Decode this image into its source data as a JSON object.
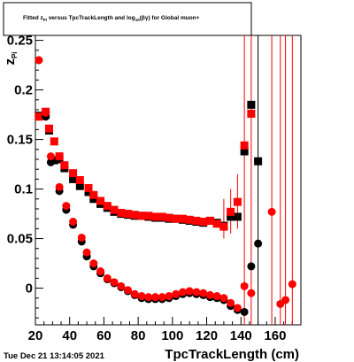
{
  "title": {
    "prefix": "Fitted  z",
    "z_sub": "Pi",
    "middle": "  versus TpcTrackLength and log",
    "log_sub": "10",
    "suffix": "(βγ) for Global muon+"
  },
  "timestamp": "Tue Dec 21 13:14:05 2021",
  "colors": {
    "black_series": "#000000",
    "red_series": "#ff0000",
    "frame": "#000000"
  },
  "chart_data": {
    "type": "scatter",
    "xlabel": "TpcTrackLength (cm)",
    "ylabel": "z_Pi",
    "xlim": [
      20,
      175
    ],
    "ylim": [
      -0.037,
      0.255
    ],
    "xticks": [
      20,
      40,
      60,
      80,
      100,
      120,
      140,
      160
    ],
    "yticks": [
      0,
      0.05,
      0.1,
      0.15,
      0.2,
      0.25
    ],
    "ytick_labels": [
      "0",
      "0.05",
      "0.1",
      "0.15",
      "0.2",
      "0.25"
    ],
    "grid": false,
    "legend": "none",
    "series": [
      {
        "marker": "square",
        "color": "black",
        "points": [
          [
            22,
            0.174
          ],
          [
            26,
            0.175
          ],
          [
            28,
            0.159
          ],
          [
            31,
            0.129
          ],
          [
            34,
            0.13
          ],
          [
            37,
            0.121
          ],
          [
            42,
            0.11
          ],
          [
            46,
            0.103
          ],
          [
            51,
            0.097
          ],
          [
            54,
            0.09
          ],
          [
            58,
            0.085
          ],
          [
            62,
            0.081
          ],
          [
            66,
            0.077
          ],
          [
            70,
            0.075
          ],
          [
            74,
            0.074
          ],
          [
            78,
            0.073
          ],
          [
            82,
            0.073
          ],
          [
            86,
            0.072
          ],
          [
            90,
            0.071
          ],
          [
            94,
            0.071
          ],
          [
            98,
            0.07
          ],
          [
            102,
            0.07
          ],
          [
            106,
            0.069
          ],
          [
            110,
            0.068
          ],
          [
            114,
            0.067
          ],
          [
            118,
            0.066
          ],
          [
            122,
            0.068
          ],
          [
            126,
            0.066
          ],
          [
            130,
            0.063
          ],
          [
            134,
            0.072
          ],
          [
            138,
            0.072
          ],
          [
            142,
            0.138
          ],
          [
            146,
            0.185
          ],
          [
            150,
            0.128
          ]
        ]
      },
      {
        "marker": "square",
        "color": "red",
        "points": [
          [
            22,
            0.173
          ],
          [
            26,
            0.178
          ],
          [
            28,
            0.161
          ],
          [
            31,
            0.148
          ],
          [
            34,
            0.133
          ],
          [
            37,
            0.124
          ],
          [
            42,
            0.116
          ],
          [
            46,
            0.109
          ],
          [
            51,
            0.101
          ],
          [
            54,
            0.094
          ],
          [
            58,
            0.088
          ],
          [
            62,
            0.083
          ],
          [
            66,
            0.079
          ],
          [
            70,
            0.076
          ],
          [
            74,
            0.075
          ],
          [
            78,
            0.074
          ],
          [
            82,
            0.073
          ],
          [
            86,
            0.073
          ],
          [
            90,
            0.072
          ],
          [
            94,
            0.072
          ],
          [
            98,
            0.071
          ],
          [
            102,
            0.07
          ],
          [
            106,
            0.07
          ],
          [
            110,
            0.069
          ],
          [
            114,
            0.068
          ],
          [
            118,
            0.067
          ],
          [
            122,
            0.068
          ],
          [
            126,
            0.065
          ],
          [
            130,
            0.062
          ],
          [
            134,
            0.077
          ],
          [
            138,
            0.087
          ],
          [
            142,
            0.144
          ],
          [
            146,
            0.176
          ]
        ]
      },
      {
        "marker": "circle",
        "color": "black",
        "points": [
          [
            22,
            0.23
          ],
          [
            26,
            0.173
          ],
          [
            29,
            0.127
          ],
          [
            34,
            0.098
          ],
          [
            38,
            0.079
          ],
          [
            42,
            0.064
          ],
          [
            47,
            0.047
          ],
          [
            50,
            0.032
          ],
          [
            54,
            0.022
          ],
          [
            58,
            0.015
          ],
          [
            62,
            0.009
          ],
          [
            66,
            0.005
          ],
          [
            70,
            0.001
          ],
          [
            74,
            -0.003
          ],
          [
            78,
            -0.007
          ],
          [
            82,
            -0.01
          ],
          [
            86,
            -0.011
          ],
          [
            90,
            -0.011
          ],
          [
            94,
            -0.011
          ],
          [
            98,
            -0.01
          ],
          [
            102,
            -0.008
          ],
          [
            106,
            -0.006
          ],
          [
            110,
            -0.005
          ],
          [
            114,
            -0.006
          ],
          [
            118,
            -0.007
          ],
          [
            122,
            -0.009
          ],
          [
            126,
            -0.01
          ],
          [
            130,
            -0.012
          ],
          [
            134,
            -0.018
          ],
          [
            138,
            -0.022
          ],
          [
            142,
            -0.024
          ],
          [
            146,
            0.022
          ],
          [
            150,
            0.045
          ]
        ]
      },
      {
        "marker": "circle",
        "color": "red",
        "points": [
          [
            22,
            0.23
          ],
          [
            26,
            0.177
          ],
          [
            29,
            0.133
          ],
          [
            34,
            0.102
          ],
          [
            38,
            0.083
          ],
          [
            42,
            0.067
          ],
          [
            47,
            0.051
          ],
          [
            50,
            0.036
          ],
          [
            54,
            0.025
          ],
          [
            58,
            0.017
          ],
          [
            62,
            0.01
          ],
          [
            66,
            0.006
          ],
          [
            70,
            0.002
          ],
          [
            74,
            -0.002
          ],
          [
            78,
            -0.006
          ],
          [
            82,
            -0.008
          ],
          [
            86,
            -0.009
          ],
          [
            90,
            -0.009
          ],
          [
            94,
            -0.009
          ],
          [
            98,
            -0.008
          ],
          [
            102,
            -0.006
          ],
          [
            106,
            -0.004
          ],
          [
            110,
            -0.003
          ],
          [
            114,
            -0.004
          ],
          [
            118,
            -0.005
          ],
          [
            122,
            -0.007
          ],
          [
            126,
            -0.008
          ],
          [
            130,
            -0.01
          ],
          [
            134,
            -0.015
          ],
          [
            138,
            -0.02
          ],
          [
            142,
            0.002
          ],
          [
            146,
            -0.005
          ],
          [
            158,
            0.077
          ],
          [
            163,
            -0.016
          ],
          [
            166,
            -0.012
          ],
          [
            170,
            0.004
          ]
        ]
      }
    ],
    "error_bars": [
      {
        "color": "red",
        "x": 130,
        "y_low": 0.05,
        "y_high": 0.09
      },
      {
        "color": "red",
        "x": 134,
        "y_low": 0.055,
        "y_high": 0.1
      },
      {
        "color": "red",
        "x": 138,
        "y_low": 0.06,
        "y_high": 0.115
      },
      {
        "color": "red",
        "x": 142,
        "y_low": -0.037,
        "y_high": 0.255
      },
      {
        "color": "red",
        "x": 146,
        "y_low": -0.037,
        "y_high": 0.255
      },
      {
        "color": "black",
        "x": 150,
        "y_low": -0.037,
        "y_high": 0.255
      },
      {
        "color": "red",
        "x": 158,
        "y_low": -0.037,
        "y_high": 0.255
      },
      {
        "color": "red",
        "x": 163,
        "y_low": -0.037,
        "y_high": 0.255
      },
      {
        "color": "red",
        "x": 166,
        "y_low": -0.037,
        "y_high": 0.255
      },
      {
        "color": "red",
        "x": 170,
        "y_low": -0.037,
        "y_high": 0.255
      }
    ]
  }
}
